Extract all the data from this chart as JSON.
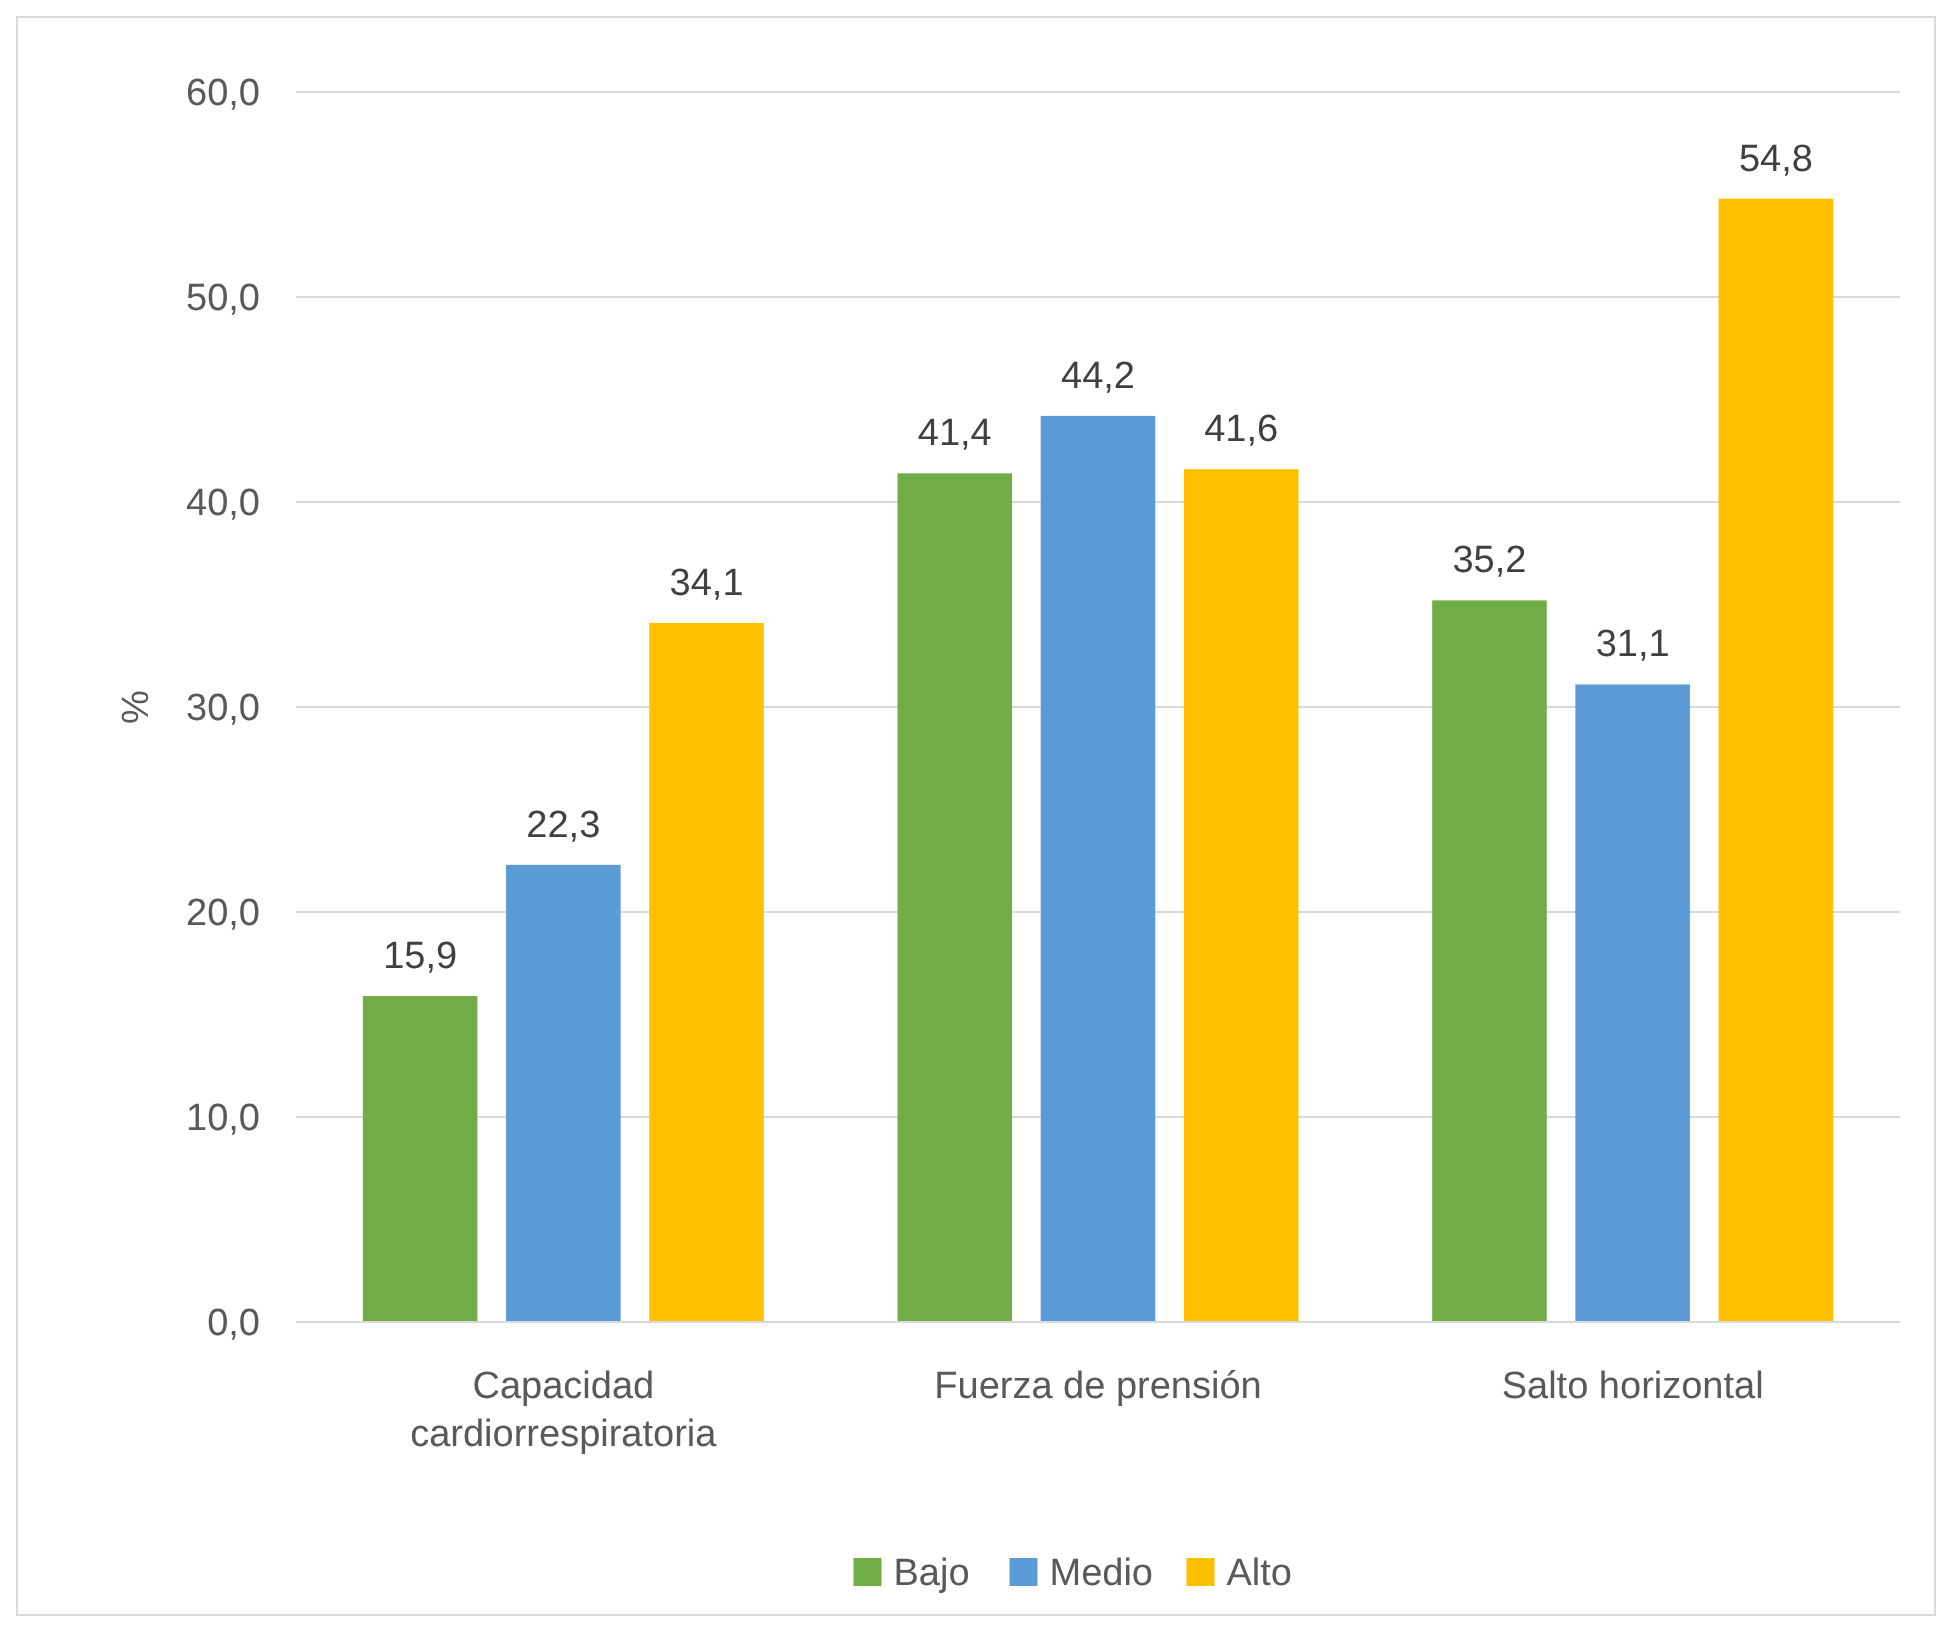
{
  "chart_data": {
    "type": "bar",
    "ylabel": "%",
    "categories": [
      "Capacidad cardiorrespiratoria",
      "Fuerza de prensión",
      "Salto horizontal"
    ],
    "series": [
      {
        "name": "Bajo",
        "color": "#70ad47",
        "values": [
          15.9,
          41.4,
          35.2
        ],
        "value_labels": [
          "15,9",
          "41,4",
          "35,2"
        ]
      },
      {
        "name": "Medio",
        "color": "#5b9bd5",
        "values": [
          22.3,
          44.2,
          31.1
        ],
        "value_labels": [
          "22,3",
          "44,2",
          "31,1"
        ]
      },
      {
        "name": "Alto",
        "color": "#ffc000",
        "values": [
          34.1,
          41.6,
          54.8
        ],
        "value_labels": [
          "34,1",
          "41,6",
          "54,8"
        ]
      }
    ],
    "ylim": [
      0,
      60
    ],
    "yticks": [
      {
        "value": 0,
        "label": "0,0"
      },
      {
        "value": 10,
        "label": "10,0"
      },
      {
        "value": 20,
        "label": "20,0"
      },
      {
        "value": 30,
        "label": "30,0"
      },
      {
        "value": 40,
        "label": "40,0"
      },
      {
        "value": 50,
        "label": "50,0"
      },
      {
        "value": 60,
        "label": "60,0"
      }
    ],
    "grid": "y",
    "legend": "bottom"
  }
}
